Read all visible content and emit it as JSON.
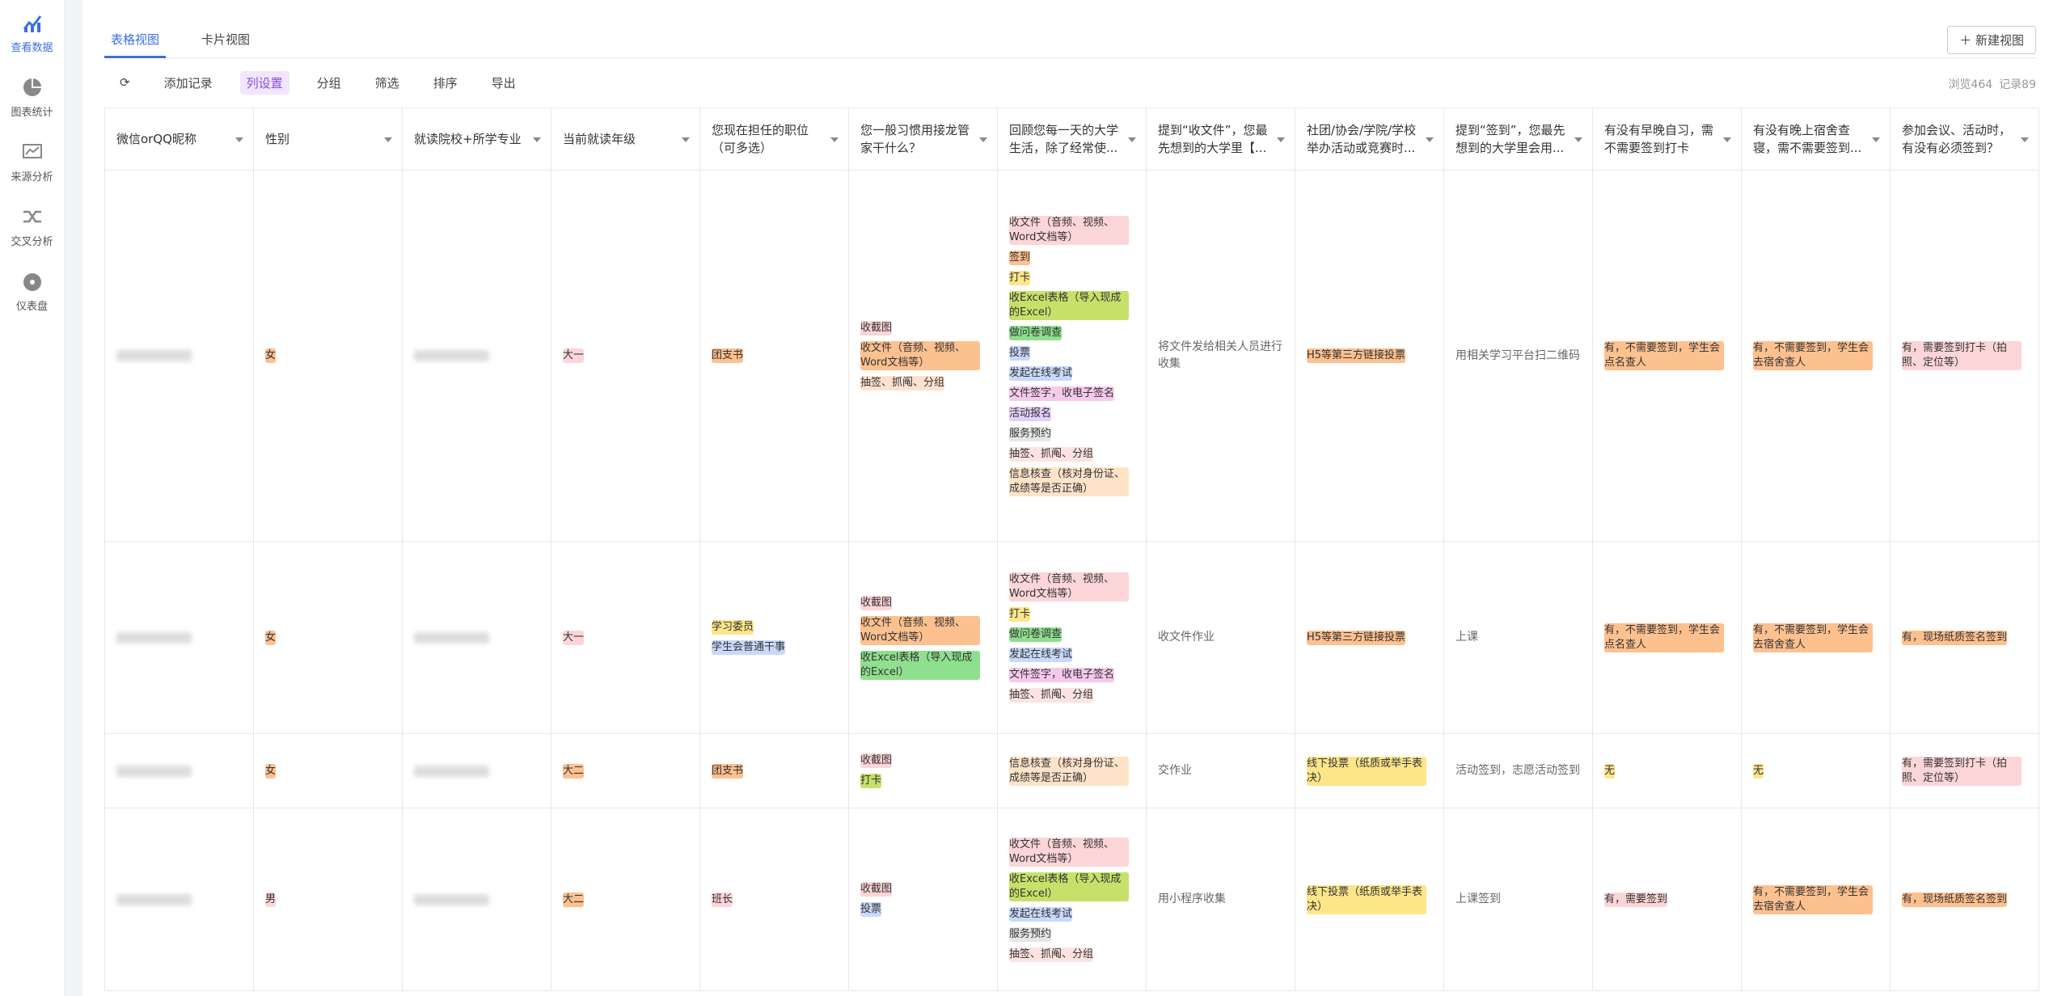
{
  "sidebar": [
    {
      "label": "查看数据",
      "active": true
    },
    {
      "label": "图表统计"
    },
    {
      "label": "来源分析"
    },
    {
      "label": "交叉分析"
    },
    {
      "label": "仪表盘"
    }
  ],
  "tabs": [
    {
      "label": "表格视图",
      "active": true
    },
    {
      "label": "卡片视图"
    }
  ],
  "new_view": "新建视图",
  "toolbar": [
    {
      "label": "添加记录"
    },
    {
      "label": "列设置",
      "active": true
    },
    {
      "label": "分组"
    },
    {
      "label": "筛选"
    },
    {
      "label": "排序"
    },
    {
      "label": "导出"
    }
  ],
  "stats": [
    "浏览464",
    "记录89"
  ],
  "table": {
    "columns": [
      "微信orQQ昵称",
      "性别",
      "就读院校+所学专业",
      "当前就读年级",
      "您现在担任的职位（可多选）",
      "您一般习惯用接龙管家干什么？",
      "回顾您每一天的大学生活，除了经常使...",
      "提到“收文件”，您最先想到的大学里【...",
      "社团/协会/学院/学校举办活动或竞赛时...",
      "提到“签到”，您最先想到的大学里会用...",
      "有没有早晚自习，需不需要签到打卡",
      "有没有晚上宿舍查寝，需不需要签到...",
      "参加会议、活动时，有没有必须签到？"
    ],
    "rows": [
      [
        null,
        {
          "tags": [
            {
              "text": "女",
              "color": "#fdc08f"
            }
          ]
        },
        null,
        {
          "tags": [
            {
              "text": "大一",
              "color": "#fcd5d8"
            }
          ]
        },
        {
          "tags": [
            {
              "text": "团支书",
              "color": "#fdc08f"
            }
          ]
        },
        {
          "tags": [
            {
              "text": "收截图",
              "color": "#fcd5d8"
            },
            {
              "text": "收文件（音频、视频、Word文档等）",
              "color": "#fdc08f"
            },
            {
              "text": "抽签、抓阄、分组",
              "color": "#fde3cf"
            }
          ]
        },
        {
          "tags": [
            {
              "text": "收文件（音频、视频、Word文档等）",
              "color": "#fcd5d8"
            },
            {
              "text": "签到",
              "color": "#fdc08f"
            },
            {
              "text": "打卡",
              "color": "#fde58a"
            },
            {
              "text": "收Excel表格（导入现成的Excel）",
              "color": "#c6e06a"
            },
            {
              "text": "做问卷调查",
              "color": "#8fe08e"
            },
            {
              "text": "投票",
              "color": "#c9d8fb"
            },
            {
              "text": "发起在线考试",
              "color": "#c9d8fb"
            },
            {
              "text": "文件签字，收电子签名",
              "color": "#f6c9ec"
            },
            {
              "text": "活动报名",
              "color": "#e2cffb"
            },
            {
              "text": "服务预约",
              "color": "#e6e6e6"
            },
            {
              "text": "抽签、抓阄、分组",
              "color": "#fde2e2"
            },
            {
              "text": "信息核查（核对身份证、成绩等是否正确）",
              "color": "#fde3c8"
            }
          ]
        },
        {
          "text": "将文件发给相关人员进行收集"
        },
        {
          "tags": [
            {
              "text": "H5等第三方链接投票",
              "color": "#fdc08f"
            }
          ]
        },
        {
          "text": "用相关学习平台扫二维码"
        },
        {
          "tags": [
            {
              "text": "有，不需要签到，学生会点名查人",
              "color": "#fdc08f"
            }
          ]
        },
        {
          "tags": [
            {
              "text": "有，不需要签到，学生会去宿舍查人",
              "color": "#fdc08f"
            }
          ]
        },
        {
          "tags": [
            {
              "text": "有，需要签到打卡（拍照、定位等）",
              "color": "#fcd5d8"
            }
          ]
        }
      ],
      [
        null,
        {
          "tags": [
            {
              "text": "女",
              "color": "#fdc08f"
            }
          ]
        },
        null,
        {
          "tags": [
            {
              "text": "大一",
              "color": "#fcd5d8"
            }
          ]
        },
        {
          "tags": [
            {
              "text": "学习委员",
              "color": "#fde58a"
            },
            {
              "text": "学生会普通干事",
              "color": "#c9d8fb"
            }
          ]
        },
        {
          "tags": [
            {
              "text": "收截图",
              "color": "#fcd5d8"
            },
            {
              "text": "收文件（音频、视频、Word文档等）",
              "color": "#fdc08f"
            },
            {
              "text": "收Excel表格（导入现成的Excel）",
              "color": "#8fe08e"
            }
          ]
        },
        {
          "tags": [
            {
              "text": "收文件（音频、视频、Word文档等）",
              "color": "#fcd5d8"
            },
            {
              "text": "打卡",
              "color": "#fde58a"
            },
            {
              "text": "做问卷调查",
              "color": "#8fe08e"
            },
            {
              "text": "发起在线考试",
              "color": "#c9d8fb"
            },
            {
              "text": "文件签字，收电子签名",
              "color": "#f6c9ec"
            },
            {
              "text": "抽签、抓阄、分组",
              "color": "#fde2e2"
            }
          ]
        },
        {
          "text": "收文件作业"
        },
        {
          "tags": [
            {
              "text": "H5等第三方链接投票",
              "color": "#fdc08f"
            }
          ]
        },
        {
          "text": "上课"
        },
        {
          "tags": [
            {
              "text": "有，不需要签到，学生会点名查人",
              "color": "#fdc08f"
            }
          ]
        },
        {
          "tags": [
            {
              "text": "有，不需要签到，学生会去宿舍查人",
              "color": "#fdc08f"
            }
          ]
        },
        {
          "tags": [
            {
              "text": "有，现场纸质签名签到",
              "color": "#fdc08f"
            }
          ]
        }
      ],
      [
        null,
        {
          "tags": [
            {
              "text": "女",
              "color": "#fdc08f"
            }
          ]
        },
        null,
        {
          "tags": [
            {
              "text": "大二",
              "color": "#fdc08f"
            }
          ]
        },
        {
          "tags": [
            {
              "text": "团支书",
              "color": "#fdc08f"
            }
          ]
        },
        {
          "tags": [
            {
              "text": "收截图",
              "color": "#fcd5d8"
            },
            {
              "text": "打卡",
              "color": "#c6e06a"
            }
          ]
        },
        {
          "tags": [
            {
              "text": "信息核查（核对身份证、成绩等是否正确）",
              "color": "#fde3c8"
            }
          ]
        },
        {
          "text": "交作业"
        },
        {
          "tags": [
            {
              "text": "线下投票（纸质或举手表决）",
              "color": "#fde58a"
            }
          ]
        },
        {
          "text": "活动签到，志愿活动签到"
        },
        {
          "tags": [
            {
              "text": "无",
              "color": "#fde58a"
            }
          ]
        },
        {
          "tags": [
            {
              "text": "无",
              "color": "#fde58a"
            }
          ]
        },
        {
          "tags": [
            {
              "text": "有，需要签到打卡（拍照、定位等）",
              "color": "#fcd5d8"
            }
          ]
        }
      ],
      [
        null,
        {
          "tags": [
            {
              "text": "男",
              "color": "#fcd5d8"
            }
          ]
        },
        null,
        {
          "tags": [
            {
              "text": "大二",
              "color": "#fdc08f"
            }
          ]
        },
        {
          "tags": [
            {
              "text": "班长",
              "color": "#fcd5d8"
            }
          ]
        },
        {
          "tags": [
            {
              "text": "收截图",
              "color": "#fcd5d8"
            },
            {
              "text": "投票",
              "color": "#c9d8fb"
            }
          ]
        },
        {
          "tags": [
            {
              "text": "收文件（音频、视频、Word文档等）",
              "color": "#fcd5d8"
            },
            {
              "text": "收Excel表格（导入现成的Excel）",
              "color": "#c6e06a"
            },
            {
              "text": "发起在线考试",
              "color": "#c9d8fb"
            },
            {
              "text": "服务预约",
              "color": "#e6e6e6"
            },
            {
              "text": "抽签、抓阄、分组",
              "color": "#fde2e2"
            }
          ]
        },
        {
          "text": "用小程序收集"
        },
        {
          "tags": [
            {
              "text": "线下投票（纸质或举手表决）",
              "color": "#fde58a"
            }
          ]
        },
        {
          "text": "上课签到"
        },
        {
          "tags": [
            {
              "text": "有，需要签到",
              "color": "#fcd5d8"
            }
          ]
        },
        {
          "tags": [
            {
              "text": "有，不需要签到，学生会去宿舍查人",
              "color": "#fdc08f"
            }
          ]
        },
        {
          "tags": [
            {
              "text": "有，现场纸质签名签到",
              "color": "#fdc08f"
            }
          ]
        }
      ]
    ]
  }
}
